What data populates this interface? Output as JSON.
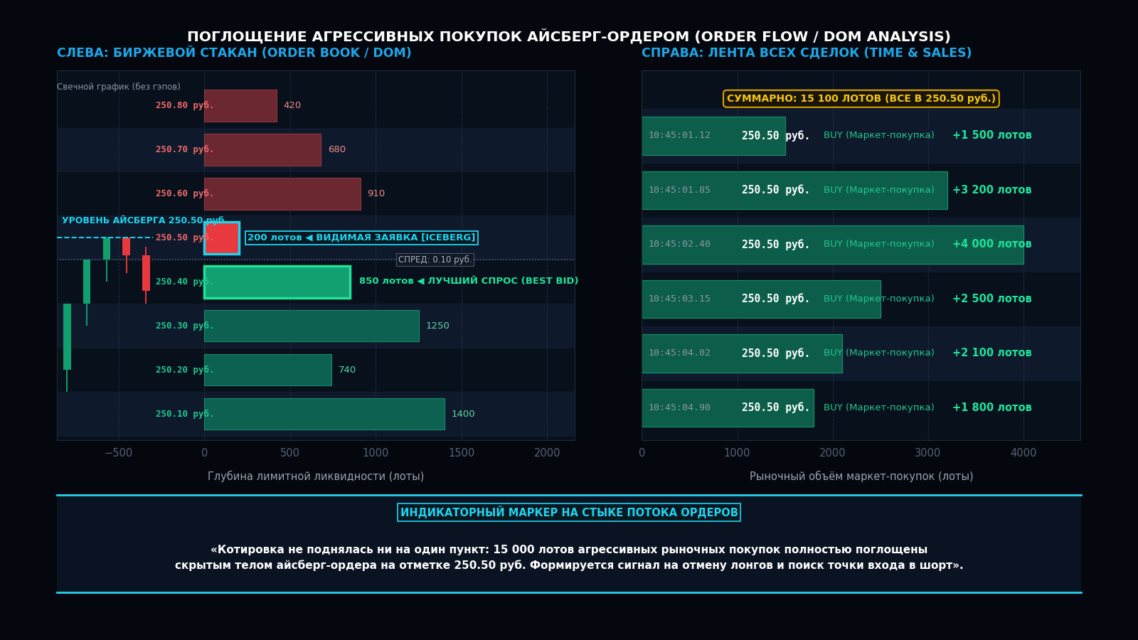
{
  "title": "ПОГЛОЩЕНИЕ АГРЕССИВНЫХ ПОКУПОК АЙСБЕРГ-ОРДЕРОМ (ORDER FLOW / DOM ANALYSIS)",
  "chart_data": [
    {
      "type": "bar",
      "orientation": "horizontal",
      "title": "СЛЕВА: БИРЖЕВОЙ СТАКАН (ORDER BOOK / DOM)",
      "x_label": "Глубина лимитной ликвидности (лоты)",
      "caption": "Свечной график (без гэпов)",
      "y": [
        250.8,
        250.7,
        250.6,
        250.5,
        250.4,
        250.3,
        250.2,
        250.1
      ],
      "categories": [
        "250.80 руб.",
        "250.70 руб.",
        "250.60 руб.",
        "250.50 руб.",
        "250.40 руб.",
        "250.30 руб.",
        "250.20 руб.",
        "250.10 руб."
      ],
      "values": [
        420,
        680,
        910,
        200,
        850,
        1250,
        740,
        1400
      ],
      "value_labels": [
        "420",
        "680",
        "910",
        "200 лотов ◀ ВИДИМАЯ ЗАЯВКА [ICEBERG]",
        "850 лотов ◀ ЛУЧШИЙ СПРОС (BEST BID)",
        "1250",
        "740",
        "1400"
      ],
      "colors": [
        "#6b2831",
        "#6b2831",
        "#6b2831",
        "#e8393f",
        "#13a070",
        "#0c6150",
        "#0c6150",
        "#0c6150"
      ],
      "data_labels": true,
      "iceberg_level": {
        "price": 250.5,
        "label": "УРОВЕНЬ АЙСБЕРГА 250.50 руб."
      },
      "spread_label": "СПРЕД: 0.10 руб.",
      "candles": {
        "x": [
          -800,
          -685,
          -570,
          -455,
          -340
        ],
        "open": [
          250.2,
          250.35,
          250.45,
          250.5,
          250.46
        ],
        "high": [
          250.35,
          250.45,
          250.5,
          250.5,
          250.48
        ],
        "low": [
          250.15,
          250.3,
          250.4,
          250.42,
          250.35
        ],
        "close": [
          250.35,
          250.45,
          250.5,
          250.46,
          250.38
        ]
      },
      "xlim": [
        -860,
        2160
      ],
      "xticks": [
        {
          "value": -500,
          "label": "−500"
        },
        0,
        500,
        1000,
        1500,
        2000
      ],
      "ylim": [
        250.04,
        250.88
      ],
      "tick_labels": "x",
      "grid": true
    },
    {
      "type": "bar",
      "orientation": "horizontal",
      "title": "СПРАВА: ЛЕНТА ВСЕХ СДЕЛОК (TIME & SALES)",
      "x_label": "Рыночный объём маркет-покупок (лоты)",
      "summary": "СУММАРНО: 15 100 ЛОТОВ (ВСЕ В 250.50 руб.)",
      "categories": [
        "10:45:01.12",
        "10:45:01.85",
        "10:45:02.40",
        "10:45:03.15",
        "10:45:04.02",
        "10:45:04.90"
      ],
      "price_labels": [
        "250.50 руб.",
        "250.50 руб.",
        "250.50 руб.",
        "250.50 руб.",
        "250.50 руб.",
        "250.50 руб."
      ],
      "side_labels": [
        "BUY (Маркет-покупка)",
        "BUY (Маркет-покупка)",
        "BUY (Маркет-покупка)",
        "BUY (Маркет-покупка)",
        "BUY (Маркет-покупка)",
        "BUY (Маркет-покупка)"
      ],
      "values": [
        1500,
        3200,
        4000,
        2500,
        2100,
        1800
      ],
      "value_labels": [
        "+1 500 лотов",
        "+3 200 лотов",
        "+4 000 лотов",
        "+2 500 лотов",
        "+2 100 лотов",
        "+1 800 лотов"
      ],
      "color": "#0c5e4a",
      "data_labels": true,
      "xlim": [
        0,
        4600
      ],
      "xticks": [
        0,
        1000,
        2000,
        3000,
        4000
      ],
      "tick_labels": "x",
      "grid": true
    }
  ],
  "footer": {
    "header": "ИНДИКАТОРНЫЙ МАРКЕР НА СТЫКЕ ПОТОКА ОРДЕРОВ",
    "lines": [
      "«Котировка не поднялась ни на один пункт: 15 000 лотов агрессивных рыночных покупок полностью поглощены",
      "скрытым телом айсберг-ордера на отметке 250.50 руб. Формируется сигнал на отмену лонгов и поиск точки входа в шорт»."
    ]
  }
}
